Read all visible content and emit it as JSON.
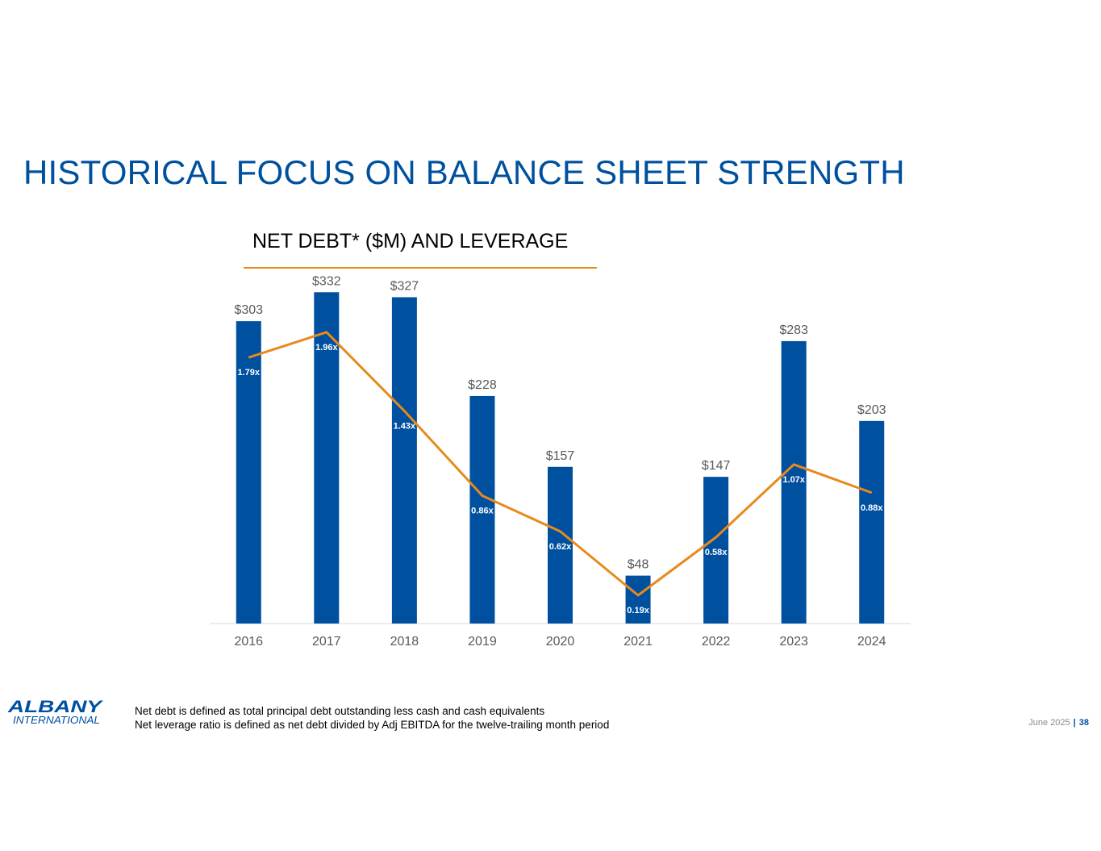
{
  "slide": {
    "title": "HISTORICAL FOCUS ON BALANCE SHEET STRENGTH",
    "date": "June 2025",
    "page": "38"
  },
  "logo": {
    "line1": "ALBANY",
    "line2": "INTERNATIONAL"
  },
  "footnotes": [
    "Net debt is defined as total principal debt outstanding less cash and cash equivalents",
    "Net leverage ratio is defined as net debt divided by Adj EBITDA for the twelve-trailing month period"
  ],
  "colors": {
    "bar": "#0050a0",
    "line": "#e8891c",
    "title": "#0050a0",
    "axis_text": "#595959"
  },
  "chart_data": {
    "type": "bar",
    "title": "NET DEBT* ($M) AND LEVERAGE",
    "categories": [
      "2016",
      "2017",
      "2018",
      "2019",
      "2020",
      "2021",
      "2022",
      "2023",
      "2024"
    ],
    "series": [
      {
        "name": "Net Debt ($M)",
        "type": "bar",
        "values": [
          303,
          332,
          327,
          228,
          157,
          48,
          147,
          283,
          203
        ],
        "labels": [
          "$303",
          "$332",
          "$327",
          "$228",
          "$157",
          "$48",
          "$147",
          "$283",
          "$203"
        ]
      },
      {
        "name": "Net Leverage",
        "type": "line",
        "values": [
          1.79,
          1.96,
          1.43,
          0.86,
          0.62,
          0.19,
          0.58,
          1.07,
          0.88
        ],
        "labels": [
          "1.79x",
          "1.96x",
          "1.43x",
          "0.86x",
          "0.62x",
          "0.19x",
          "0.58x",
          "1.07x",
          "0.88x"
        ]
      }
    ],
    "ylim": [
      0,
      350
    ],
    "y2lim": [
      0,
      2.35
    ],
    "grid": false,
    "legend": "none"
  }
}
